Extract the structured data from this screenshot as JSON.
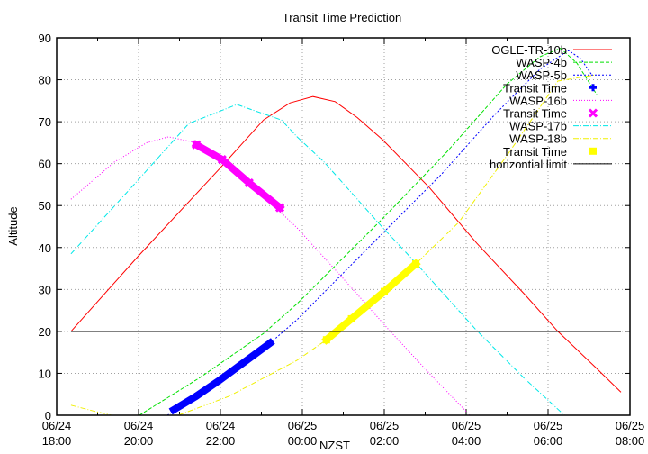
{
  "chart_data": {
    "type": "line",
    "title": "Transit Time Prediction",
    "xlabel": "NZST",
    "ylabel": "Altitude",
    "x_units": "hours since 06/24 18:00",
    "xlim": [
      0,
      14
    ],
    "ylim": [
      0,
      90
    ],
    "grid": true,
    "legend_position": "top-right",
    "y_ticks": [
      "0",
      "10",
      "20",
      "30",
      "40",
      "50",
      "60",
      "70",
      "80",
      "90"
    ],
    "x_ticks": [
      {
        "date": "06/24",
        "time": "18:00"
      },
      {
        "date": "06/24",
        "time": "20:00"
      },
      {
        "date": "06/24",
        "time": "22:00"
      },
      {
        "date": "06/25",
        "time": "00:00"
      },
      {
        "date": "06/25",
        "time": "02:00"
      },
      {
        "date": "06/25",
        "time": "04:00"
      },
      {
        "date": "06/25",
        "time": "06:00"
      },
      {
        "date": "06/25",
        "time": "08:00"
      }
    ],
    "series": [
      {
        "name": "OGLE-TR-10b",
        "kind": "line",
        "color": "#ff0000",
        "dash": "",
        "points": [
          [
            0.35,
            20
          ],
          [
            1.98,
            37.8
          ],
          [
            3.96,
            58.6
          ],
          [
            5.05,
            70.4
          ],
          [
            5.7,
            74.5
          ],
          [
            6.26,
            76
          ],
          [
            6.8,
            74.8
          ],
          [
            7.34,
            71
          ],
          [
            7.96,
            65.7
          ],
          [
            9.1,
            54.3
          ],
          [
            10.26,
            41
          ],
          [
            11.43,
            28.8
          ],
          [
            12.24,
            20
          ],
          [
            13.16,
            11.4
          ],
          [
            13.78,
            5.5
          ]
        ]
      },
      {
        "name": "WASP-4b",
        "kind": "line",
        "color": "#00e000",
        "dash": "4,2",
        "points": [
          [
            2.02,
            0
          ],
          [
            3.5,
            9
          ],
          [
            5.05,
            19.5
          ],
          [
            5.87,
            26.6
          ],
          [
            7.91,
            46.4
          ],
          [
            9.5,
            62.5
          ],
          [
            11,
            79
          ],
          [
            11.8,
            85.5
          ],
          [
            12.3,
            87.5
          ],
          [
            12.7,
            84
          ],
          [
            13.19,
            76.5
          ]
        ]
      },
      {
        "name": "WASP-5b",
        "kind": "line",
        "color": "#0000ff",
        "dash": "2,2",
        "points": [
          [
            2.7,
            0
          ],
          [
            3.8,
            6.5
          ],
          [
            5.21,
            17.2
          ],
          [
            5.87,
            22.8
          ],
          [
            8,
            43.8
          ],
          [
            9.4,
            57.5
          ],
          [
            10.7,
            71.7
          ],
          [
            11.8,
            82.5
          ],
          [
            12.5,
            87
          ],
          [
            12.8,
            85
          ],
          [
            13.08,
            81
          ]
        ]
      },
      {
        "name": "Transit Time",
        "kind": "transit",
        "color": "#0000ff",
        "marker": "plus",
        "points": [
          [
            2.86,
            1.3
          ],
          [
            3.4,
            4.5
          ],
          [
            4.0,
            8.5
          ],
          [
            4.6,
            12.8
          ],
          [
            5.21,
            17.2
          ]
        ]
      },
      {
        "name": "WASP-16b",
        "kind": "line",
        "color": "#ff00ff",
        "dash": "1,2",
        "points": [
          [
            0.35,
            51.5
          ],
          [
            1.41,
            60.4
          ],
          [
            2.2,
            65
          ],
          [
            2.73,
            66.4
          ],
          [
            3.41,
            65
          ],
          [
            4.04,
            61
          ],
          [
            4.7,
            55.4
          ],
          [
            5.38,
            49.2
          ],
          [
            5.87,
            44.7
          ],
          [
            6.97,
            32.9
          ],
          [
            8.13,
            20.2
          ],
          [
            9.1,
            10
          ],
          [
            10.09,
            0
          ]
        ]
      },
      {
        "name": "Transit Time",
        "kind": "transit",
        "color": "#ff00ff",
        "marker": "cross",
        "points": [
          [
            3.41,
            64.5
          ],
          [
            4.04,
            61
          ],
          [
            4.7,
            55.4
          ],
          [
            5.45,
            49.5
          ]
        ]
      },
      {
        "name": "WASP-17b",
        "kind": "line",
        "color": "#00e8e8",
        "dash": "6,2,1,2",
        "points": [
          [
            0.35,
            38.5
          ],
          [
            1.98,
            56
          ],
          [
            3.23,
            69.6
          ],
          [
            4.4,
            74.1
          ],
          [
            5.49,
            70.4
          ],
          [
            5.87,
            66.4
          ],
          [
            6.53,
            60.4
          ],
          [
            7.91,
            45.3
          ],
          [
            8.79,
            36.1
          ],
          [
            10.26,
            20.2
          ],
          [
            11.4,
            9
          ],
          [
            12.4,
            0
          ]
        ]
      },
      {
        "name": "WASP-18b",
        "kind": "line",
        "color": "#f0f000",
        "dash": "6,2,1,2",
        "points": [
          [
            0.35,
            2.4
          ],
          [
            0.9,
            1
          ],
          [
            1.34,
            0
          ],
          [
            2.97,
            0
          ],
          [
            4.2,
            4.5
          ],
          [
            5.87,
            13.1
          ],
          [
            6.59,
            18
          ],
          [
            7.7,
            27
          ],
          [
            8.77,
            36.1
          ],
          [
            9.82,
            46
          ],
          [
            11,
            62
          ],
          [
            12.24,
            79.7
          ],
          [
            13.17,
            81.2
          ]
        ]
      },
      {
        "name": "Transit Time",
        "kind": "transit",
        "color": "#ffff00",
        "marker": "box",
        "points": [
          [
            6.59,
            18
          ],
          [
            7.2,
            23
          ],
          [
            8.0,
            29.5
          ],
          [
            8.77,
            36.1
          ]
        ]
      },
      {
        "name": "horizontial limit",
        "kind": "line",
        "color": "#000000",
        "dash": "",
        "points": [
          [
            0.35,
            20
          ],
          [
            13.78,
            20
          ]
        ]
      }
    ]
  }
}
